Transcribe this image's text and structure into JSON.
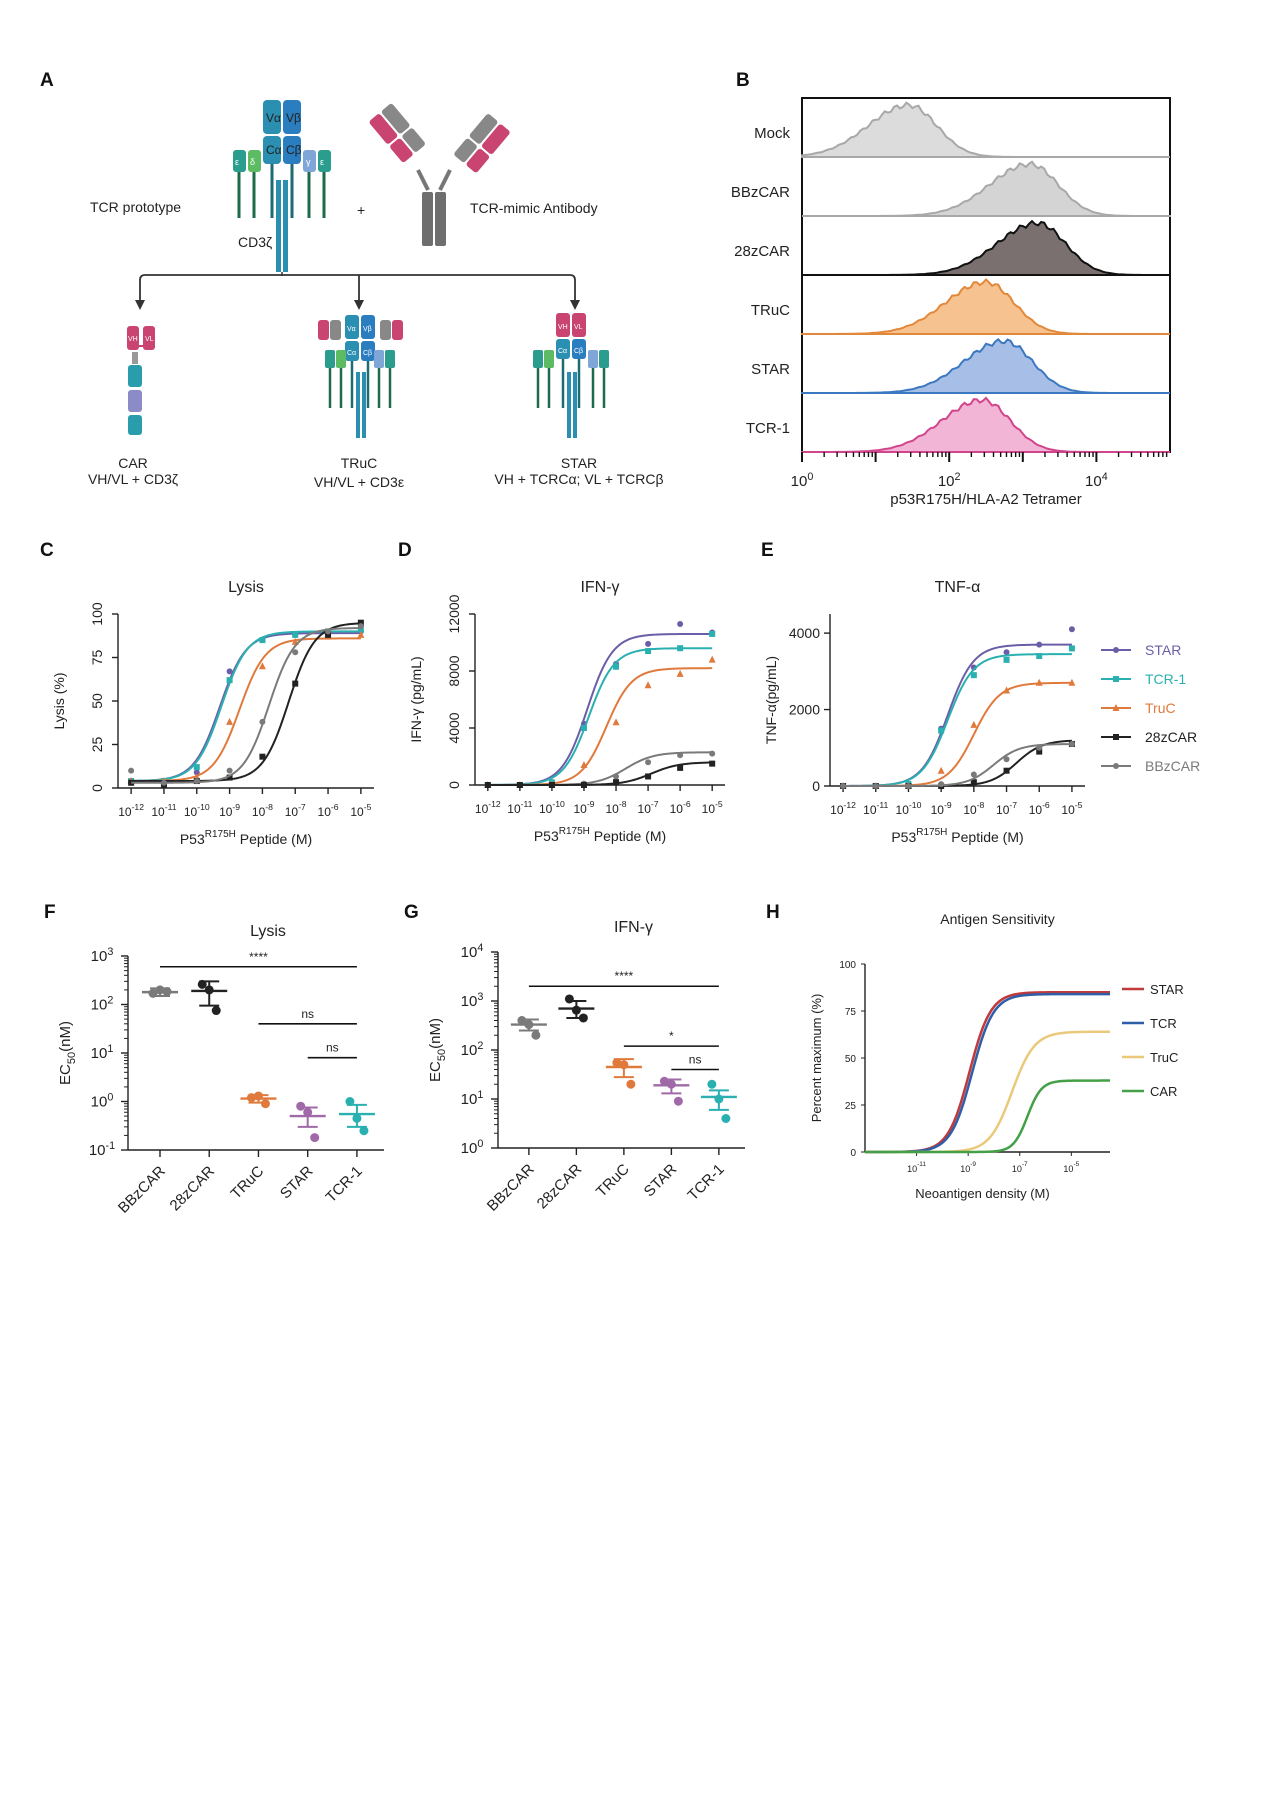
{
  "panel_labels": {
    "A": "A",
    "B": "B",
    "C": "C",
    "D": "D",
    "E": "E",
    "F": "F",
    "G": "G",
    "H": "H"
  },
  "panel_a": {
    "tcr_prototype": "TCR prototype",
    "plus": "+",
    "tcr_mimic": "TCR-mimic Antibody",
    "cd3z": "CD3ζ",
    "tcr_chains": [
      "Vα",
      "Vβ",
      "Cα",
      "Cβ",
      "ε",
      "δ",
      "γ",
      "ε"
    ],
    "car_domains": [
      "VH",
      "VL"
    ],
    "truc_chains": [
      "Vα",
      "Vβ",
      "Cα",
      "Cβ"
    ],
    "star_chains": [
      "VH",
      "VL",
      "Cα",
      "Cβ"
    ],
    "constructs": [
      {
        "name": "CAR",
        "desc": "VH/VL + CD3ζ"
      },
      {
        "name": "TRuC",
        "desc": "VH/VL + CD3ε"
      },
      {
        "name": "STAR",
        "desc": "VH + TCRCα; VL + TCRCβ"
      }
    ]
  },
  "chart_data": [
    {
      "panel": "B",
      "type": "area",
      "title": "",
      "xlabel": "p53R175H/HLA-A2 Tetramer",
      "xscale": "log",
      "xlim": [
        1,
        100000
      ],
      "xticks": [
        {
          "v": 1,
          "base": "10",
          "exp": "0"
        },
        {
          "v": 100,
          "base": "10",
          "exp": "2"
        },
        {
          "v": 10000,
          "base": "10",
          "exp": "4"
        }
      ],
      "series": [
        {
          "name": "Mock",
          "color": "#a8a8a8",
          "fill": "#dcdcdc",
          "peak_log": 1.45
        },
        {
          "name": "BBzCAR",
          "color": "#a8a8a8",
          "fill": "#d4d4d4",
          "peak_log": 3.1
        },
        {
          "name": "28zCAR",
          "color": "#111111",
          "fill": "#7a7070",
          "peak_log": 3.2
        },
        {
          "name": "TRuC",
          "color": "#e2883a",
          "fill": "#f6c28f",
          "peak_log": 2.5
        },
        {
          "name": "STAR",
          "color": "#3c78c0",
          "fill": "#a7bfe6",
          "peak_log": 2.75
        },
        {
          "name": "TCR-1",
          "color": "#d0458c",
          "fill": "#f2b5d6",
          "peak_log": 2.45
        }
      ]
    },
    {
      "panel": "C",
      "type": "line",
      "title": "Lysis",
      "xlabel_main": "P53",
      "xlabel_sup": "R175H",
      "xlabel_rest": " Peptide (M)",
      "ylabel": "Lysis (%)",
      "ylim": [
        0,
        100
      ],
      "yticks": [
        0,
        25,
        50,
        75,
        100
      ],
      "x": [
        -12,
        -11,
        -10,
        -9,
        -8,
        -7,
        -6,
        -5
      ],
      "series": [
        {
          "name": "STAR",
          "color": "#6b5ea8",
          "marker": "circle",
          "top": 89,
          "bottom": 4,
          "ec50": -9.3,
          "hill": 1.1,
          "values": [
            4,
            4,
            9,
            67,
            85,
            88,
            90,
            90
          ]
        },
        {
          "name": "TCR-1",
          "color": "#2ab0b0",
          "marker": "square",
          "top": 90,
          "bottom": 4,
          "ec50": -9.25,
          "hill": 1.1,
          "values": [
            4,
            4,
            12,
            62,
            85,
            88,
            90,
            91
          ]
        },
        {
          "name": "TruC",
          "color": "#e07a3c",
          "marker": "triangle",
          "top": 86,
          "bottom": 4,
          "ec50": -8.7,
          "hill": 1.1,
          "values": [
            4,
            4,
            6,
            38,
            70,
            84,
            87,
            88
          ]
        },
        {
          "name": "28zCAR",
          "color": "#222222",
          "marker": "square",
          "top": 95,
          "bottom": 4,
          "ec50": -7.2,
          "hill": 1.1,
          "values": [
            3,
            2,
            4,
            6,
            18,
            60,
            88,
            95
          ]
        },
        {
          "name": "BBzCAR",
          "color": "#7a7a7a",
          "marker": "circle",
          "top": 92,
          "bottom": 3,
          "ec50": -7.8,
          "hill": 1.1,
          "values": [
            10,
            3,
            4,
            10,
            38,
            78,
            90,
            93
          ]
        }
      ]
    },
    {
      "panel": "D",
      "type": "line",
      "title": "IFN-γ",
      "xlabel_main": "P53",
      "xlabel_sup": "R175H",
      "xlabel_rest": " Peptide (M)",
      "ylabel": "IFN-γ (pg/mL)",
      "ylim": [
        0,
        12000
      ],
      "yticks": [
        0,
        4000,
        8000,
        12000
      ],
      "x": [
        -12,
        -11,
        -10,
        -9,
        -8,
        -7,
        -6,
        -5
      ],
      "series": [
        {
          "name": "STAR",
          "color": "#6b5ea8",
          "marker": "circle",
          "top": 10600,
          "bottom": 0,
          "ec50": -8.9,
          "hill": 1.1,
          "values": [
            0,
            0,
            200,
            4300,
            8500,
            9900,
            11300,
            10700
          ]
        },
        {
          "name": "TCR-1",
          "color": "#2ab0b0",
          "marker": "square",
          "top": 9600,
          "bottom": 0,
          "ec50": -8.85,
          "hill": 1.1,
          "values": [
            0,
            0,
            180,
            4000,
            8300,
            9400,
            9600,
            10600
          ]
        },
        {
          "name": "TruC",
          "color": "#e07a3c",
          "marker": "triangle",
          "top": 8200,
          "bottom": 0,
          "ec50": -8.3,
          "hill": 1.1,
          "values": [
            0,
            0,
            50,
            1400,
            4400,
            7000,
            7800,
            8800
          ]
        },
        {
          "name": "BBzCAR",
          "color": "#7a7a7a",
          "marker": "circle",
          "top": 2300,
          "bottom": 0,
          "ec50": -7.7,
          "hill": 1.0,
          "values": [
            0,
            0,
            0,
            100,
            600,
            1600,
            2100,
            2200
          ]
        },
        {
          "name": "28zCAR",
          "color": "#222222",
          "marker": "square",
          "top": 1600,
          "bottom": 0,
          "ec50": -6.9,
          "hill": 1.0,
          "values": [
            0,
            0,
            0,
            0,
            200,
            600,
            1200,
            1500
          ]
        }
      ]
    },
    {
      "panel": "E",
      "type": "line",
      "title": "TNF-α",
      "xlabel_main": "P53",
      "xlabel_sup": "R175H",
      "xlabel_rest": " Peptide (M)",
      "ylabel": "TNF-α(pg/mL)",
      "ylim": [
        0,
        4500
      ],
      "yticks": [
        0,
        2000,
        4000
      ],
      "x": [
        -12,
        -11,
        -10,
        -9,
        -8,
        -7,
        -6,
        -5
      ],
      "series": [
        {
          "name": "STAR",
          "color": "#6b5ea8",
          "marker": "circle",
          "top": 3700,
          "bottom": 0,
          "ec50": -8.8,
          "hill": 1.1,
          "values": [
            0,
            0,
            60,
            1500,
            3100,
            3500,
            3700,
            4100
          ]
        },
        {
          "name": "TCR-1",
          "color": "#2ab0b0",
          "marker": "square",
          "top": 3450,
          "bottom": 0,
          "ec50": -8.8,
          "hill": 1.1,
          "values": [
            0,
            0,
            50,
            1450,
            2900,
            3300,
            3400,
            3600
          ]
        },
        {
          "name": "TruC",
          "color": "#e07a3c",
          "marker": "triangle",
          "top": 2700,
          "bottom": 0,
          "ec50": -8.0,
          "hill": 1.1,
          "values": [
            0,
            0,
            0,
            400,
            1600,
            2500,
            2700,
            2700
          ]
        },
        {
          "name": "28zCAR",
          "color": "#222222",
          "marker": "square",
          "top": 1200,
          "bottom": 0,
          "ec50": -6.7,
          "hill": 1.1,
          "values": [
            0,
            0,
            0,
            0,
            100,
            400,
            900,
            1100
          ]
        },
        {
          "name": "BBzCAR",
          "color": "#7a7a7a",
          "marker": "circle",
          "top": 1100,
          "bottom": 0,
          "ec50": -7.4,
          "hill": 1.1,
          "values": [
            0,
            0,
            0,
            50,
            300,
            700,
            1000,
            1100
          ]
        }
      ]
    },
    {
      "panel": "F",
      "type": "scatter",
      "title": "Lysis",
      "ylabel_main": "EC",
      "ylabel_sub": "50",
      "ylabel_rest": "(nM)",
      "yscale": "log",
      "ylim": [
        0.1,
        1000
      ],
      "ytick_exps": [
        "-1",
        "0",
        "1",
        "2",
        "3"
      ],
      "categories": [
        "BBzCAR",
        "28zCAR",
        "TRuC",
        "STAR",
        "TCR-1"
      ],
      "series": [
        {
          "name": "BBzCAR",
          "color": "#7a7a7a",
          "mean": 180,
          "sem_low": 150,
          "sem_high": 215,
          "points": [
            170,
            200,
            185
          ]
        },
        {
          "name": "28zCAR",
          "color": "#222222",
          "mean": 190,
          "sem_low": 95,
          "sem_high": 300,
          "points": [
            260,
            200,
            75
          ]
        },
        {
          "name": "TRuC",
          "color": "#e07a3c",
          "mean": 1.15,
          "sem_low": 0.95,
          "sem_high": 1.35,
          "points": [
            1.2,
            1.3,
            0.9
          ]
        },
        {
          "name": "STAR",
          "color": "#a06aa8",
          "mean": 0.5,
          "sem_low": 0.3,
          "sem_high": 0.75,
          "points": [
            0.8,
            0.6,
            0.18
          ]
        },
        {
          "name": "TCR-1",
          "color": "#2ab0b0",
          "mean": 0.55,
          "sem_low": 0.3,
          "sem_high": 0.85,
          "points": [
            1.0,
            0.45,
            0.25
          ]
        }
      ],
      "annotations": [
        {
          "text": "****",
          "from": 0,
          "to": 4,
          "y": 600
        },
        {
          "text": "ns",
          "from": 2,
          "to": 4,
          "y": 40
        },
        {
          "text": "ns",
          "from": 3,
          "to": 4,
          "y": 8
        }
      ]
    },
    {
      "panel": "G",
      "type": "scatter",
      "title": "IFN-γ",
      "ylabel_main": "EC",
      "ylabel_sub": "50",
      "ylabel_rest": "(nM)",
      "yscale": "log",
      "ylim": [
        1,
        10000
      ],
      "ytick_exps": [
        "0",
        "1",
        "2",
        "3",
        "4"
      ],
      "categories": [
        "BBzCAR",
        "28zCAR",
        "TRuC",
        "STAR",
        "TCR-1"
      ],
      "series": [
        {
          "name": "BBzCAR",
          "color": "#7a7a7a",
          "mean": 330,
          "sem_low": 250,
          "sem_high": 420,
          "points": [
            400,
            330,
            200
          ]
        },
        {
          "name": "28zCAR",
          "color": "#222222",
          "mean": 700,
          "sem_low": 450,
          "sem_high": 1000,
          "points": [
            1100,
            650,
            450
          ]
        },
        {
          "name": "TRuC",
          "color": "#e07a3c",
          "mean": 45,
          "sem_low": 28,
          "sem_high": 65,
          "points": [
            55,
            50,
            20
          ]
        },
        {
          "name": "STAR",
          "color": "#a06aa8",
          "mean": 19,
          "sem_low": 13,
          "sem_high": 25,
          "points": [
            23,
            20,
            9
          ]
        },
        {
          "name": "TCR-1",
          "color": "#2ab0b0",
          "mean": 11,
          "sem_low": 6,
          "sem_high": 15,
          "points": [
            20,
            10,
            4
          ]
        }
      ],
      "annotations": [
        {
          "text": "****",
          "from": 0,
          "to": 4,
          "y": 2000
        },
        {
          "text": "*",
          "from": 2,
          "to": 4,
          "y": 120
        },
        {
          "text": "ns",
          "from": 3,
          "to": 4,
          "y": 40
        }
      ]
    },
    {
      "panel": "H",
      "type": "line",
      "title": "Antigen Sensitivity",
      "xlabel": "Neoantigen density (M)",
      "ylabel": "Percent maximum (%)",
      "ylim": [
        0,
        100
      ],
      "yticks": [
        0,
        25,
        50,
        75,
        100
      ],
      "xlim": [
        -13,
        -3.5
      ],
      "xticks": [
        {
          "v": -11,
          "exp": "-11"
        },
        {
          "v": -9,
          "exp": "-9"
        },
        {
          "v": -7,
          "exp": "-7"
        },
        {
          "v": -5,
          "exp": "-5"
        }
      ],
      "series": [
        {
          "name": "STAR",
          "color": "#c0393b",
          "top": 85,
          "ec50": -8.95,
          "hill": 1.05
        },
        {
          "name": "TCR",
          "color": "#2f5ea8",
          "top": 84,
          "ec50": -8.85,
          "hill": 1.05
        },
        {
          "name": "TruC",
          "color": "#ebc97a",
          "top": 64,
          "ec50": -7.3,
          "hill": 1.0
        },
        {
          "name": "CAR",
          "color": "#43a047",
          "top": 38,
          "ec50": -6.7,
          "hill": 1.6
        }
      ]
    }
  ]
}
